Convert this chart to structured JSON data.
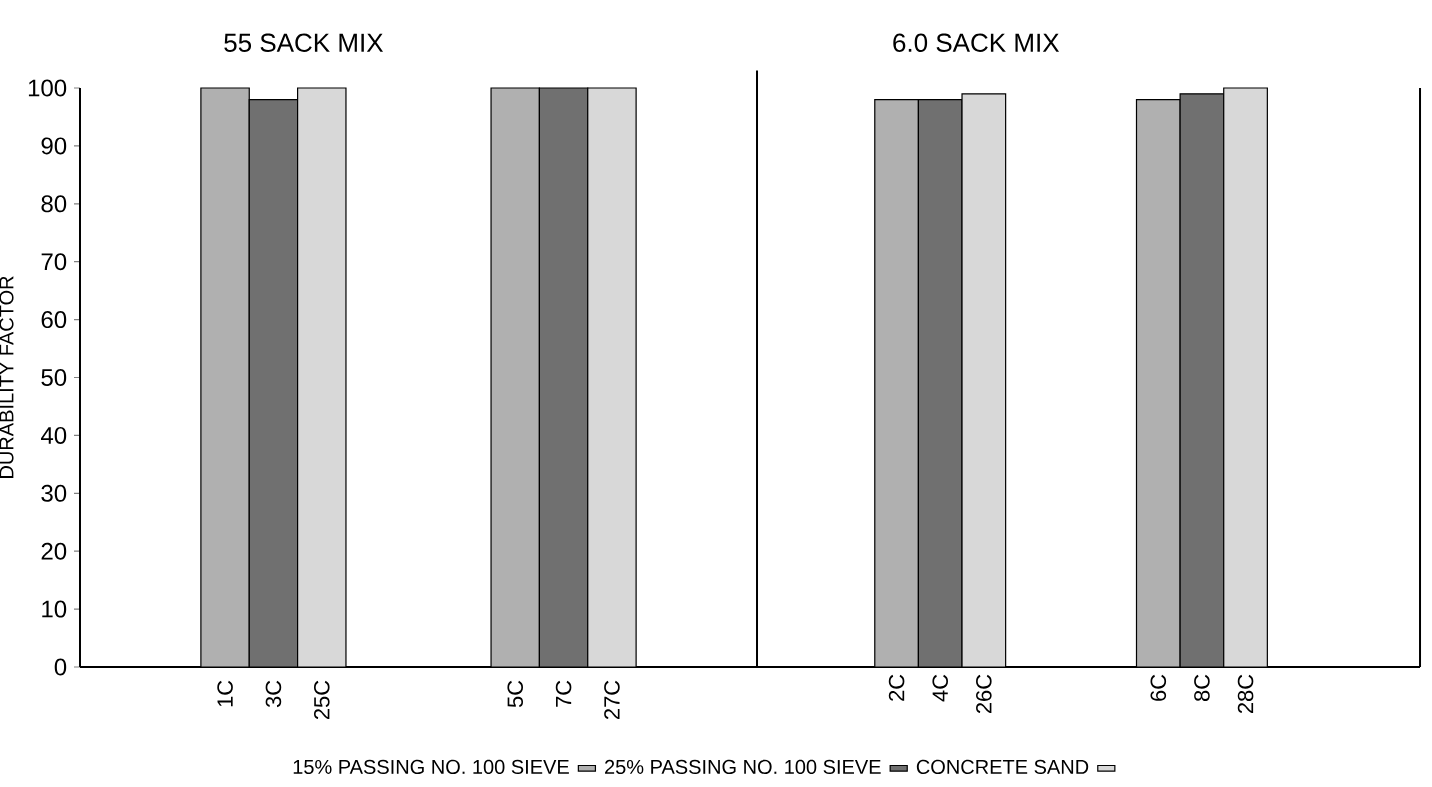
{
  "chart_data": [
    {
      "type": "bar",
      "title": "55 SACK MIX",
      "ylabel": "DURABILITY FACTOR",
      "categories": [
        "1C",
        "3C",
        "25C",
        "5C",
        "7C",
        "27C"
      ],
      "series": [
        {
          "name": "15% PASSING NO. 100 SIEVE",
          "color": "#b0b0b0",
          "values": [
            100,
            null,
            null,
            100,
            null,
            null
          ]
        },
        {
          "name": "25% PASSING NO. 100 SIEVE",
          "color": "#707070",
          "values": [
            null,
            98,
            null,
            null,
            100,
            null
          ]
        },
        {
          "name": "CONCRETE SAND",
          "color": "#d8d8d8",
          "values": [
            null,
            null,
            100,
            null,
            null,
            100
          ]
        }
      ],
      "ylim": [
        0,
        100
      ],
      "yticks": [
        0,
        10,
        20,
        30,
        40,
        50,
        60,
        70,
        80,
        90,
        100
      ],
      "legend": "bottom"
    },
    {
      "type": "bar",
      "title": "6.0 SACK MIX",
      "categories": [
        "2C",
        "4C",
        "26C",
        "6C",
        "8C",
        "28C"
      ],
      "series": [
        {
          "color": "#b0b0b0",
          "values": [
            98,
            null,
            null,
            98,
            null,
            null
          ]
        },
        {
          "color": "#707070",
          "values": [
            null,
            98,
            null,
            null,
            99,
            null
          ]
        },
        {
          "color": "#d8d8d8",
          "values": [
            null,
            null,
            99,
            null,
            null,
            100
          ]
        }
      ],
      "ylim": [
        0,
        100
      ],
      "tick_labels": "x"
    }
  ]
}
